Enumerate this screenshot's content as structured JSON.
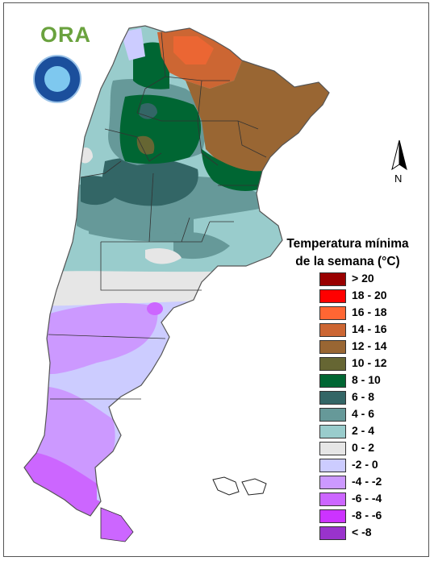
{
  "logo": {
    "text": "ORA"
  },
  "north_arrow": {
    "label": "N"
  },
  "legend": {
    "title_line1": "Temperatura mínima",
    "title_line2": "de la semana (°C)",
    "items": [
      {
        "label": "> 20",
        "color": "#990000"
      },
      {
        "label": "18 - 20",
        "color": "#ff0000"
      },
      {
        "label": "16 - 18",
        "color": "#ff6633"
      },
      {
        "label": "14 - 16",
        "color": "#cc6633"
      },
      {
        "label": "12 - 14",
        "color": "#996633"
      },
      {
        "label": "10 - 12",
        "color": "#666633"
      },
      {
        "label": "8 - 10",
        "color": "#006633"
      },
      {
        "label": "6 - 8",
        "color": "#336666"
      },
      {
        "label": "4 - 6",
        "color": "#669999"
      },
      {
        "label": "2 - 4",
        "color": "#99cccc"
      },
      {
        "label": "0 - 2",
        "color": "#e6e6e6"
      },
      {
        "label": "-2 - 0",
        "color": "#ccccff"
      },
      {
        "label": "-4 - -2",
        "color": "#cc99ff"
      },
      {
        "label": "-6 - -4",
        "color": "#cc66ff"
      },
      {
        "label": "-8 - -6",
        "color": "#cc33ff"
      },
      {
        "label": "< -8",
        "color": "#9933cc"
      }
    ]
  }
}
